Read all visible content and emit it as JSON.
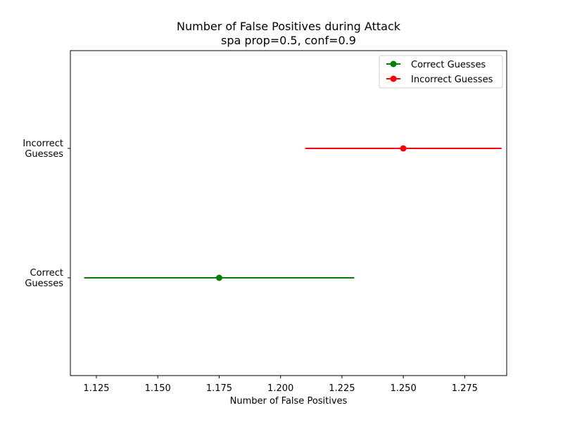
{
  "chart_data": {
    "type": "errorbar",
    "title": "Number of False Positives during Attack",
    "subtitle": "spa prop=0.5, conf=0.9",
    "xlabel": "Number of False Positives",
    "ylabel": "",
    "xlim": [
      1.1144,
      1.2921
    ],
    "x_ticks": [
      "1.125",
      "1.150",
      "1.175",
      "1.200",
      "1.225",
      "1.250",
      "1.275"
    ],
    "x_tick_values": [
      1.125,
      1.15,
      1.175,
      1.2,
      1.225,
      1.25,
      1.275
    ],
    "categories": [
      "Correct\nGuesses",
      "Incorrect\nGuesses"
    ],
    "category_lines": [
      [
        "Correct",
        "Guesses"
      ],
      [
        "Incorrect",
        "Guesses"
      ]
    ],
    "grid": false,
    "legend_position": "top-right",
    "series": [
      {
        "name": "Correct Guesses",
        "category_index": 0,
        "x": 1.175,
        "xerr_low": 1.12,
        "xerr_high": 1.23,
        "color": "#008000"
      },
      {
        "name": "Incorrect Guesses",
        "category_index": 1,
        "x": 1.25,
        "xerr_low": 1.21,
        "xerr_high": 1.29,
        "color": "#ff0000"
      }
    ]
  }
}
